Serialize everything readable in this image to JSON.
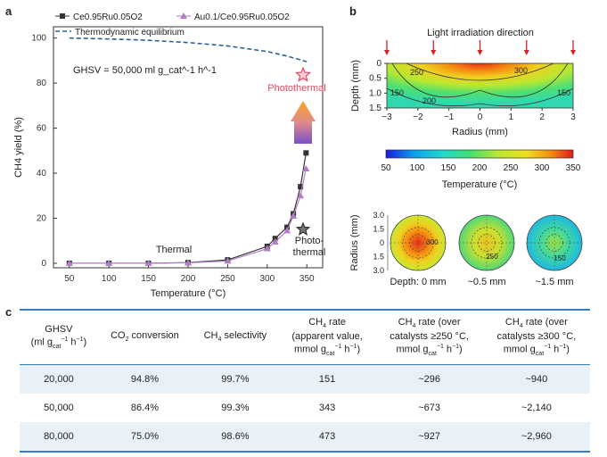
{
  "panels": {
    "a": "a",
    "b": "b",
    "c": "c"
  },
  "chart_data": [
    {
      "type": "line",
      "title": "",
      "xlabel": "Temperature (°C)",
      "ylabel": "CH4 yield (%)",
      "xlim": [
        30,
        370
      ],
      "ylim": [
        -2,
        105
      ],
      "xticks": [
        50,
        100,
        150,
        200,
        250,
        300,
        350
      ],
      "yticks": [
        0,
        20,
        40,
        60,
        80,
        100
      ],
      "series": [
        {
          "name": "Ce0.95Ru0.05O2",
          "marker": "square",
          "color": "#333333",
          "x": [
            50,
            100,
            150,
            200,
            250,
            300,
            310,
            325,
            333,
            342,
            349
          ],
          "y": [
            0,
            0,
            0,
            0.3,
            1.5,
            7.5,
            11,
            16,
            22,
            34,
            49
          ]
        },
        {
          "name": "Au0.1/Ce0.95Ru0.05O2",
          "marker": "triangle",
          "color": "#b07ec4",
          "x": [
            50,
            100,
            150,
            200,
            250,
            300,
            310,
            325,
            333,
            342,
            349
          ],
          "y": [
            0,
            0,
            0,
            0.2,
            1,
            6.5,
            9.5,
            14.5,
            21,
            30,
            42
          ]
        },
        {
          "name": "Thermodynamic equilibrium",
          "style": "dashed",
          "color": "#2d5fa0",
          "x": [
            50,
            100,
            150,
            200,
            250,
            300,
            325,
            350
          ],
          "y": [
            100,
            99.6,
            99,
            98,
            96.5,
            94,
            92,
            89.5
          ]
        }
      ],
      "annotations": [
        {
          "text": "GHSV = 50,000 ml g_cat^-1 h^-1",
          "kind": "label"
        },
        {
          "text": "Photothermal",
          "x": 338,
          "y": 90,
          "color": "#e8475f"
        },
        {
          "text": "Photo-thermal",
          "x": 338,
          "y": 15
        },
        {
          "text": "Thermal",
          "x": 175,
          "y": 3
        }
      ],
      "grid": false,
      "legend": "top"
    },
    {
      "type": "heatmap",
      "title": "Light irradiation direction",
      "xlabel": "Radius (mm)",
      "ylabel": "Depth (mm)",
      "xticks": [
        -3,
        -2,
        -1,
        0,
        1,
        2,
        3
      ],
      "yticks": [
        0,
        0.5,
        1.0,
        1.5
      ],
      "contour_labels": [
        "250",
        "300",
        "150",
        "200",
        "150"
      ],
      "colorbar": {
        "label": "Temperature (°C)",
        "ticks": [
          50,
          100,
          150,
          200,
          250,
          300,
          350
        ],
        "range": [
          50,
          350
        ]
      },
      "cross_sections": [
        {
          "label": "Depth: 0 mm",
          "contour_label": "300"
        },
        {
          "label": "~0.5 mm",
          "contour_label": "250"
        },
        {
          "label": "~1.5 mm",
          "contour_label": "150"
        }
      ],
      "cross_section_ylabel": "Radius (mm)",
      "cross_section_yticks": [
        "3.0",
        "1.5",
        "0",
        "1.5",
        "3.0"
      ]
    }
  ],
  "table": {
    "headers": [
      "GHSV (ml g_cat^-1 h^-1)",
      "CO2 conversion",
      "CH4 selectivity",
      "CH4 rate (apparent value, mmol g_cat^-1 h^-1)",
      "CH4 rate (over catalysts ≥250 °C, mmol g_cat^-1 h^-1)",
      "CH4 rate (over catalysts ≥300 °C, mmol g_cat^-1 h^-1)"
    ],
    "rows": [
      [
        "20,000",
        "94.8%",
        "99.7%",
        "151",
        "~296",
        "~940"
      ],
      [
        "50,000",
        "86.4%",
        "99.3%",
        "343",
        "~673",
        "~2,140"
      ],
      [
        "80,000",
        "75.0%",
        "98.6%",
        "473",
        "~927",
        "~2,960"
      ]
    ]
  }
}
